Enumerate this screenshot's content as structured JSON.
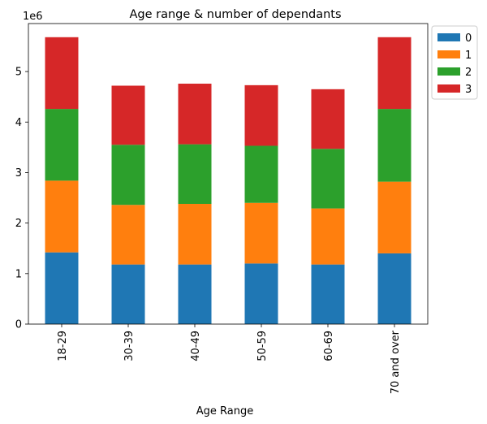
{
  "chart_data": {
    "type": "bar",
    "stacked": true,
    "title": "Age range & number of dependants",
    "xlabel": "Age Range",
    "ylabel": "",
    "y_offset_label": "1e6",
    "y_scale": 1000000,
    "ylim": [
      0,
      5950000
    ],
    "yticks": [
      0,
      1,
      2,
      3,
      4,
      5
    ],
    "grid": false,
    "legend_position": "outside-top-right",
    "categories": [
      "18-29",
      "30-39",
      "40-49",
      "50-59",
      "60-69",
      "70 and over"
    ],
    "series": [
      {
        "name": "0",
        "color": "#1f77b4",
        "values": [
          1420000,
          1180000,
          1180000,
          1200000,
          1180000,
          1400000
        ]
      },
      {
        "name": "1",
        "color": "#ff7f0e",
        "values": [
          1420000,
          1180000,
          1200000,
          1200000,
          1110000,
          1420000
        ]
      },
      {
        "name": "2",
        "color": "#2ca02c",
        "values": [
          1420000,
          1190000,
          1180000,
          1130000,
          1180000,
          1440000
        ]
      },
      {
        "name": "3",
        "color": "#d62728",
        "values": [
          1420000,
          1170000,
          1200000,
          1200000,
          1180000,
          1420000
        ]
      }
    ]
  }
}
